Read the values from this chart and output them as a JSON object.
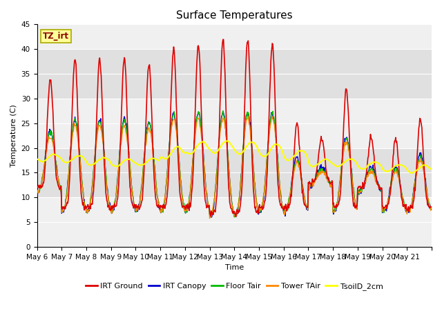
{
  "title": "Surface Temperatures",
  "xlabel": "Time",
  "ylabel": "Temperature (C)",
  "ylim": [
    0,
    45
  ],
  "yticks": [
    0,
    5,
    10,
    15,
    20,
    25,
    30,
    35,
    40,
    45
  ],
  "annotation_text": "TZ_irt",
  "series": {
    "IRT Ground": {
      "color": "#dd0000",
      "lw": 1.2
    },
    "IRT Canopy": {
      "color": "#0000cc",
      "lw": 1.0
    },
    "Floor Tair": {
      "color": "#00bb00",
      "lw": 1.0
    },
    "Tower TAir": {
      "color": "#ff8800",
      "lw": 1.0
    },
    "TsoilD_2cm": {
      "color": "#ffff00",
      "lw": 1.5
    }
  },
  "plot_bg": "#f0f0f0",
  "band_color": "#e0e0e0",
  "grid_color": "#ffffff",
  "title_fontsize": 11,
  "axis_label_fontsize": 8,
  "tick_fontsize": 7.5,
  "legend_fontsize": 8,
  "ground_min": [
    12,
    8,
    8,
    8,
    8,
    8,
    8,
    7,
    7,
    8,
    8,
    13,
    8,
    12,
    8,
    8
  ],
  "ground_max": [
    34,
    38,
    38,
    38,
    37,
    40,
    41,
    42,
    42,
    41,
    25,
    22,
    32,
    22,
    22,
    26
  ]
}
